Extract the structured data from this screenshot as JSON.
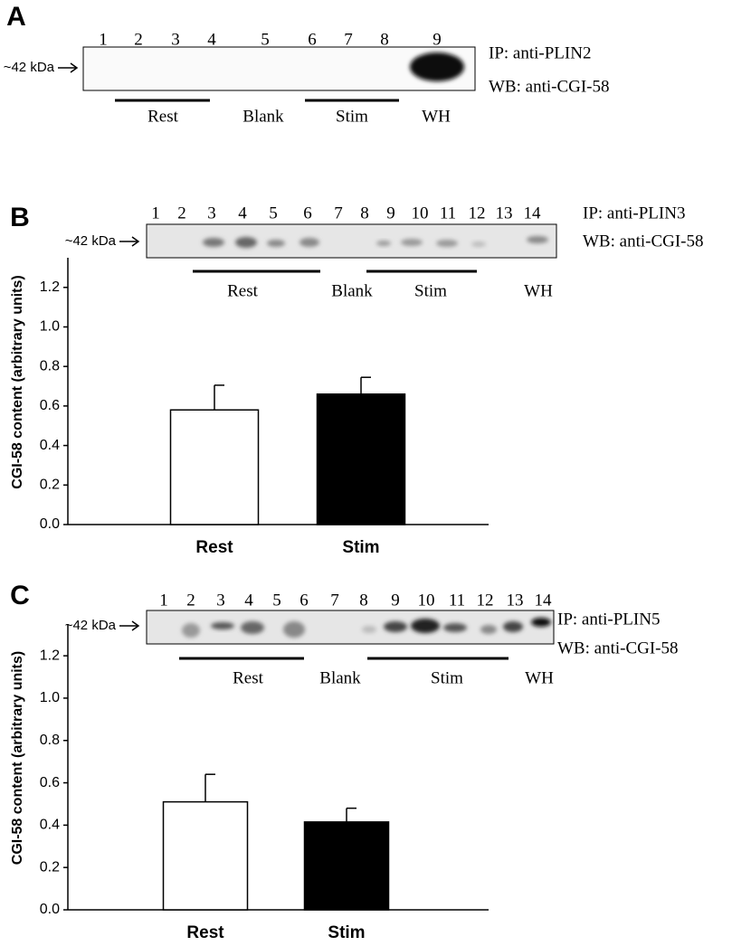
{
  "panels": [
    {
      "letter": "A",
      "blot": {
        "lanes": [
          "1",
          "2",
          "3",
          "4",
          "5",
          "6",
          "7",
          "8",
          "9"
        ],
        "marker": "~42 kDa",
        "ip": "IP: anti-PLIN2",
        "wb": "WB: anti-CGI-58",
        "groups": [
          "Rest",
          "Blank",
          "Stim",
          "WH"
        ]
      }
    },
    {
      "letter": "B",
      "blot": {
        "lanes": [
          "1",
          "2",
          "3",
          "4",
          "5",
          "6",
          "7",
          "8",
          "9",
          "10",
          "11",
          "12",
          "13",
          "14"
        ],
        "marker": "~42 kDa",
        "ip": "IP: anti-PLIN3",
        "wb": "WB: anti-CGI-58",
        "groups": [
          "Rest",
          "Blank",
          "Stim",
          "WH"
        ]
      }
    },
    {
      "letter": "C",
      "blot": {
        "lanes": [
          "1",
          "2",
          "3",
          "4",
          "5",
          "6",
          "7",
          "8",
          "9",
          "10",
          "11",
          "12",
          "13",
          "14"
        ],
        "marker": "~42 kDa",
        "ip": "IP: anti-PLIN5",
        "wb": "WB: anti-CGI-58",
        "groups": [
          "Rest",
          "Blank",
          "Stim",
          "WH"
        ]
      }
    }
  ],
  "chart_data": [
    {
      "type": "bar",
      "y_label": "CGI-58 content (arbitrary units)",
      "categories": [
        "Rest",
        "Stim"
      ],
      "values": [
        0.58,
        0.66
      ],
      "errors": [
        0.125,
        0.085
      ],
      "colors": [
        "#ffffff",
        "#000000"
      ],
      "ylim": [
        0,
        1.35
      ],
      "yticks": [
        {
          "value": 0,
          "label": "0.0"
        },
        0.2,
        0.4,
        0.6,
        0.8,
        {
          "value": 1,
          "label": "1.0"
        },
        1.2
      ]
    },
    {
      "type": "bar",
      "y_label": "CGI-58 content (arbitrary units)",
      "categories": [
        "Rest",
        "Stim"
      ],
      "values": [
        0.51,
        0.415
      ],
      "errors": [
        0.13,
        0.065
      ],
      "colors": [
        "#ffffff",
        "#000000"
      ],
      "ylim": [
        0,
        1.35
      ],
      "yticks": [
        {
          "value": 0,
          "label": "0.0"
        },
        0.2,
        0.4,
        0.6,
        0.8,
        {
          "value": 1,
          "label": "1.0"
        },
        1.2
      ]
    }
  ]
}
